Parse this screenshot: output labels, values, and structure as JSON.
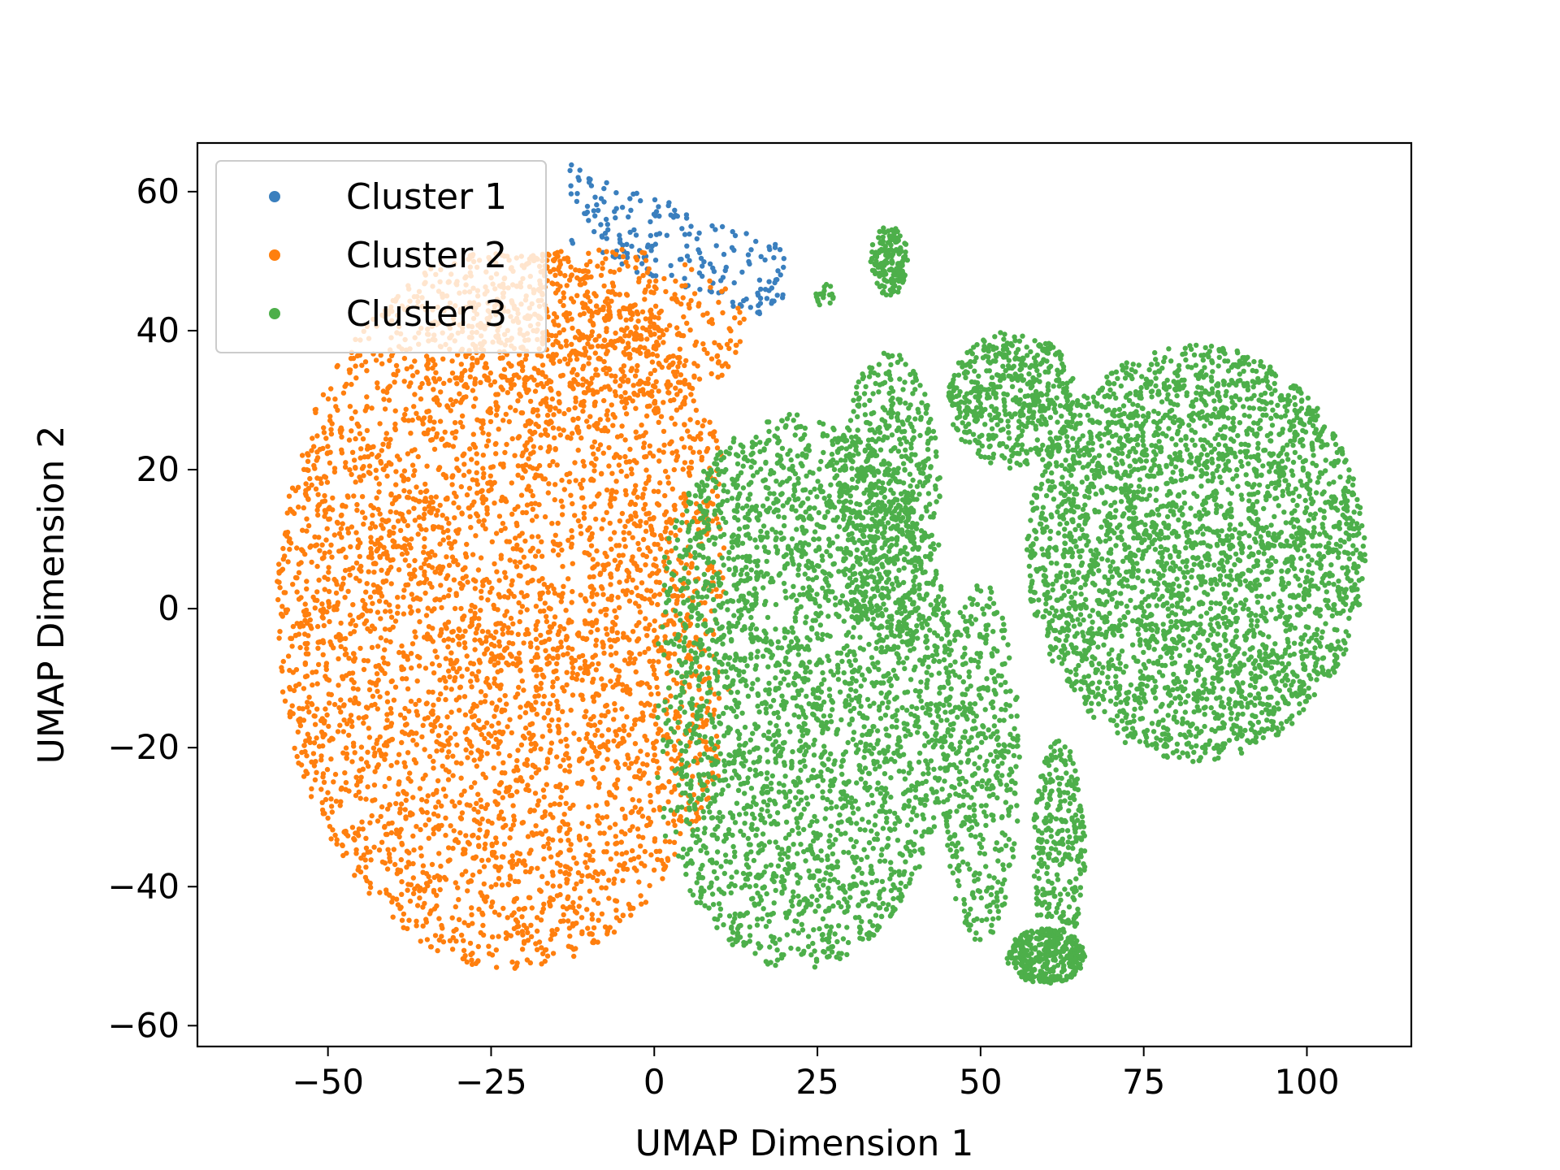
{
  "chart_data": {
    "type": "scatter",
    "title": "",
    "xlabel": "UMAP Dimension 1",
    "ylabel": "UMAP Dimension 2",
    "xlim": [
      -70,
      116
    ],
    "ylim": [
      -63,
      67
    ],
    "xticks": [
      -50,
      -25,
      0,
      25,
      50,
      75,
      100
    ],
    "yticks": [
      -60,
      -40,
      -20,
      0,
      20,
      40,
      60
    ],
    "xtick_labels": [
      "−50",
      "−25",
      "0",
      "25",
      "50",
      "75",
      "100"
    ],
    "ytick_labels": [
      "−60",
      "−40",
      "−20",
      "0",
      "20",
      "40",
      "60"
    ],
    "grid": false,
    "legend_position": "top-left",
    "series": [
      {
        "name": "Cluster 1",
        "color": "#3a7fbe",
        "regions": [
          {
            "type": "band",
            "x": [
              -13,
              20
            ],
            "y_center_at_x0": 58,
            "y_center_at_x1": 46,
            "half_height": 6,
            "count": 200
          }
        ]
      },
      {
        "name": "Cluster 2",
        "color": "#ff7f0e",
        "regions": [
          {
            "type": "ellipse",
            "cx": -22,
            "cy": 0,
            "rx": 36,
            "ry": 52,
            "clip_x_max": 10,
            "count": 4300
          },
          {
            "type": "ellipse",
            "cx": -8,
            "cy": 40,
            "rx": 22,
            "ry": 12,
            "clip_x_max": 17,
            "count": 450
          }
        ]
      },
      {
        "name": "Cluster 3",
        "color": "#4daf4a",
        "regions": [
          {
            "type": "ellipse",
            "cx": 22,
            "cy": -12,
            "rx": 24,
            "ry": 40,
            "clip_x_min": 2,
            "count": 2800
          },
          {
            "type": "ellipse",
            "cx": 83,
            "cy": 8,
            "rx": 26,
            "ry": 30,
            "count": 3200
          },
          {
            "type": "ellipse",
            "cx": 55,
            "cy": 30,
            "rx": 10,
            "ry": 10,
            "count": 500
          },
          {
            "type": "ellipse",
            "cx": 36,
            "cy": 15,
            "rx": 8,
            "ry": 22,
            "count": 550
          },
          {
            "type": "ellipse",
            "cx": 36,
            "cy": 50,
            "rx": 3,
            "ry": 5,
            "count": 160
          },
          {
            "type": "ellipse",
            "cx": 60,
            "cy": -50,
            "rx": 6,
            "ry": 4,
            "count": 300
          },
          {
            "type": "ellipse",
            "cx": 62,
            "cy": -35,
            "rx": 4,
            "ry": 16,
            "count": 300
          },
          {
            "type": "ellipse",
            "cx": 50,
            "cy": -22,
            "rx": 6,
            "ry": 26,
            "count": 450
          },
          {
            "type": "ellipse",
            "cx": 26,
            "cy": 45,
            "rx": 1.5,
            "ry": 2,
            "count": 20
          }
        ]
      }
    ]
  }
}
